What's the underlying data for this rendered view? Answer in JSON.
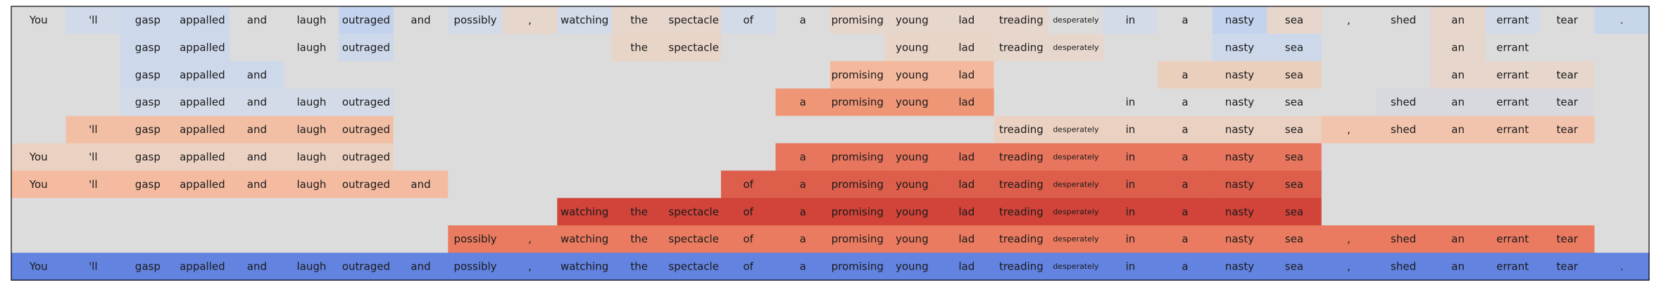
{
  "chart_data": {
    "type": "heatmap",
    "title": "",
    "tokens": [
      "You",
      "'ll",
      "gasp",
      "appalled",
      "and",
      "laugh",
      "outraged",
      "and",
      "possibly",
      ",",
      "watching",
      "the",
      "spectacle",
      "of",
      "a",
      "promising",
      "young",
      "lad",
      "treading",
      "desperately",
      "in",
      "a",
      "nasty",
      "sea",
      ",",
      "shed",
      "an",
      "errant",
      "tear",
      "."
    ],
    "rows": [
      {
        "shown": [
          1,
          1,
          1,
          1,
          1,
          1,
          1,
          1,
          1,
          1,
          1,
          1,
          1,
          1,
          1,
          1,
          1,
          1,
          1,
          1,
          1,
          1,
          1,
          1,
          1,
          1,
          1,
          1,
          1,
          1
        ],
        "colors": [
          "#dcdcdc",
          "#d0dae9",
          "#cdd8ea",
          "#cdd8ea",
          "#dcdcdc",
          "#dcdcdc",
          "#c3d3ee",
          "#dcdcdc",
          "#d3dbe8",
          "#e6d6cc",
          "#d3dbe8",
          "#e6d6cc",
          "#e6d6cc",
          "#d3dbe8",
          "#dcdcdc",
          "#e6d6cc",
          "#e6d6cc",
          "#e6d6cc",
          "#e6d6cc",
          "#dcdcdc",
          "#d3dbe8",
          "#dcdcdc",
          "#c3d3ee",
          "#e6d6cc",
          "#dcdcdc",
          "#dcdcdc",
          "#e6d6cc",
          "#d3dbe8",
          "#dcdcdc",
          "#c8d6ec"
        ]
      },
      {
        "shown": [
          0,
          0,
          1,
          1,
          0,
          1,
          1,
          0,
          0,
          0,
          0,
          1,
          1,
          0,
          0,
          0,
          1,
          1,
          1,
          1,
          0,
          0,
          1,
          1,
          0,
          0,
          1,
          1,
          0,
          0
        ],
        "colors": [
          "#dcdcdc",
          "#dcdcdc",
          "#cdd8ea",
          "#cdd8ea",
          "#dcdcdc",
          "#dcdcdc",
          "#cdd8ea",
          "#dcdcdc",
          "#dcdcdc",
          "#dcdcdc",
          "#dcdcdc",
          "#e8d5c8",
          "#e8d5c8",
          "#dcdcdc",
          "#dcdcdc",
          "#dcdcdc",
          "#e8d5c8",
          "#e8d5c8",
          "#e6d6cc",
          "#e6d6cc",
          "#dcdcdc",
          "#dcdcdc",
          "#cdd8ea",
          "#cdd8ea",
          "#dcdcdc",
          "#dcdcdc",
          "#e6d6cc",
          "#dcdcdc",
          "#dcdcdc",
          "#dcdcdc"
        ]
      },
      {
        "shown": [
          0,
          0,
          1,
          1,
          1,
          0,
          0,
          0,
          0,
          0,
          0,
          0,
          0,
          0,
          0,
          1,
          1,
          1,
          0,
          0,
          0,
          1,
          1,
          1,
          0,
          0,
          1,
          1,
          1,
          0
        ],
        "colors": [
          "#dcdcdc",
          "#dcdcdc",
          "#cdd8ea",
          "#cdd8ea",
          "#cdd8ea",
          "#dcdcdc",
          "#dcdcdc",
          "#dcdcdc",
          "#dcdcdc",
          "#dcdcdc",
          "#dcdcdc",
          "#dcdcdc",
          "#dcdcdc",
          "#dcdcdc",
          "#dcdcdc",
          "#f4b89c",
          "#f4b89c",
          "#f4b89c",
          "#dcdcdc",
          "#dcdcdc",
          "#dcdcdc",
          "#ebcfbd",
          "#ebcfbd",
          "#ebcfbd",
          "#dcdcdc",
          "#dcdcdc",
          "#e6d6cc",
          "#e6d6cc",
          "#e6d6cc",
          "#dcdcdc"
        ]
      },
      {
        "shown": [
          0,
          0,
          1,
          1,
          1,
          1,
          1,
          0,
          0,
          0,
          0,
          0,
          0,
          0,
          1,
          1,
          1,
          1,
          0,
          0,
          1,
          1,
          1,
          1,
          0,
          1,
          1,
          1,
          1,
          0
        ],
        "colors": [
          "#dcdcdc",
          "#dcdcdc",
          "#d3dbe8",
          "#d3dbe8",
          "#d3dbe8",
          "#d3dbe8",
          "#d3dbe8",
          "#dcdcdc",
          "#dcdcdc",
          "#dcdcdc",
          "#dcdcdc",
          "#dcdcdc",
          "#dcdcdc",
          "#dcdcdc",
          "#ef9677",
          "#ef9677",
          "#ef9677",
          "#ef9677",
          "#dcdcdc",
          "#dcdcdc",
          "#dcdcdc",
          "#dcdcdc",
          "#dcdcdc",
          "#dcdcdc",
          "#dcdcdc",
          "#d8d9df",
          "#d8d9df",
          "#d8d9df",
          "#d8d9df",
          "#dcdcdc"
        ]
      },
      {
        "shown": [
          0,
          1,
          1,
          1,
          1,
          1,
          1,
          0,
          0,
          0,
          0,
          0,
          0,
          0,
          0,
          0,
          0,
          0,
          1,
          1,
          1,
          1,
          1,
          1,
          1,
          1,
          1,
          1,
          1,
          0
        ],
        "colors": [
          "#dcdcdc",
          "#f2bfa5",
          "#f2bfa5",
          "#f2bfa5",
          "#f2bfa5",
          "#f2bfa5",
          "#f2bfa5",
          "#dcdcdc",
          "#dcdcdc",
          "#dcdcdc",
          "#dcdcdc",
          "#dcdcdc",
          "#dcdcdc",
          "#dcdcdc",
          "#dcdcdc",
          "#dcdcdc",
          "#dcdcdc",
          "#dcdcdc",
          "#ebd1c2",
          "#ebd1c2",
          "#ebd1c2",
          "#ebd1c2",
          "#ebd1c2",
          "#ebd1c2",
          "#f3c4ad",
          "#f3c4ad",
          "#f3c4ad",
          "#f3c4ad",
          "#f3c4ad",
          "#dcdcdc"
        ]
      },
      {
        "shown": [
          1,
          1,
          1,
          1,
          1,
          1,
          1,
          0,
          0,
          0,
          0,
          0,
          0,
          0,
          1,
          1,
          1,
          1,
          1,
          1,
          1,
          1,
          1,
          1,
          0,
          0,
          0,
          0,
          0,
          0
        ],
        "colors": [
          "#ebd1c2",
          "#ebd1c2",
          "#ebd1c2",
          "#ebd1c2",
          "#ebd1c2",
          "#ebd1c2",
          "#ebd1c2",
          "#dcdcdc",
          "#dcdcdc",
          "#dcdcdc",
          "#dcdcdc",
          "#dcdcdc",
          "#dcdcdc",
          "#dcdcdc",
          "#e8755d",
          "#e8755d",
          "#e8755d",
          "#e8755d",
          "#e8755d",
          "#e8755d",
          "#e8755d",
          "#e8755d",
          "#e8755d",
          "#e8755d",
          "#dcdcdc",
          "#dcdcdc",
          "#dcdcdc",
          "#dcdcdc",
          "#dcdcdc",
          "#dcdcdc"
        ]
      },
      {
        "shown": [
          1,
          1,
          1,
          1,
          1,
          1,
          1,
          1,
          0,
          0,
          0,
          0,
          0,
          1,
          1,
          1,
          1,
          1,
          1,
          1,
          1,
          1,
          1,
          1,
          0,
          0,
          0,
          0,
          0,
          0
        ],
        "colors": [
          "#f4bba0",
          "#f4bba0",
          "#f4bba0",
          "#f4bba0",
          "#f4bba0",
          "#f4bba0",
          "#f4bba0",
          "#f4bba0",
          "#dcdcdc",
          "#dcdcdc",
          "#dcdcdc",
          "#dcdcdc",
          "#dcdcdc",
          "#dd5e4b",
          "#dd5e4b",
          "#dd5e4b",
          "#dd5e4b",
          "#dd5e4b",
          "#dd5e4b",
          "#dd5e4b",
          "#dd5e4b",
          "#dd5e4b",
          "#dd5e4b",
          "#dd5e4b",
          "#dcdcdc",
          "#dcdcdc",
          "#dcdcdc",
          "#dcdcdc",
          "#dcdcdc",
          "#dcdcdc"
        ]
      },
      {
        "shown": [
          0,
          0,
          0,
          0,
          0,
          0,
          0,
          0,
          0,
          0,
          1,
          1,
          1,
          1,
          1,
          1,
          1,
          1,
          1,
          1,
          1,
          1,
          1,
          1,
          0,
          0,
          0,
          0,
          0,
          0
        ],
        "colors": [
          "#dcdcdc",
          "#dcdcdc",
          "#dcdcdc",
          "#dcdcdc",
          "#dcdcdc",
          "#dcdcdc",
          "#dcdcdc",
          "#dcdcdc",
          "#dcdcdc",
          "#dcdcdc",
          "#d2443a",
          "#d2443a",
          "#d2443a",
          "#d2443a",
          "#d2443a",
          "#d2443a",
          "#d2443a",
          "#d2443a",
          "#d2443a",
          "#d2443a",
          "#d2443a",
          "#d2443a",
          "#d2443a",
          "#d2443a",
          "#dcdcdc",
          "#dcdcdc",
          "#dcdcdc",
          "#dcdcdc",
          "#dcdcdc",
          "#dcdcdc"
        ]
      },
      {
        "shown": [
          0,
          0,
          0,
          0,
          0,
          0,
          0,
          0,
          1,
          1,
          1,
          1,
          1,
          1,
          1,
          1,
          1,
          1,
          1,
          1,
          1,
          1,
          1,
          1,
          1,
          1,
          1,
          1,
          1,
          0
        ],
        "colors": [
          "#dcdcdc",
          "#dcdcdc",
          "#dcdcdc",
          "#dcdcdc",
          "#dcdcdc",
          "#dcdcdc",
          "#dcdcdc",
          "#dcdcdc",
          "#ea7b60",
          "#ea7b60",
          "#ea7b60",
          "#ea7b60",
          "#ea7b60",
          "#ea7b60",
          "#ea7b60",
          "#ea7b60",
          "#ea7b60",
          "#ea7b60",
          "#ea7b60",
          "#ea7b60",
          "#ea7b60",
          "#ea7b60",
          "#ea7b60",
          "#ea7b60",
          "#ea7b60",
          "#ea7b60",
          "#ea7b60",
          "#ea7b60",
          "#ea7b60",
          "#dcdcdc"
        ]
      },
      {
        "shown": [
          1,
          1,
          1,
          1,
          1,
          1,
          1,
          1,
          1,
          1,
          1,
          1,
          1,
          1,
          1,
          1,
          1,
          1,
          1,
          1,
          1,
          1,
          1,
          1,
          1,
          1,
          1,
          1,
          1,
          1
        ],
        "colors": [
          "#6383e0",
          "#6383e0",
          "#6383e0",
          "#6383e0",
          "#6383e0",
          "#6383e0",
          "#6383e0",
          "#6383e0",
          "#6383e0",
          "#6383e0",
          "#6383e0",
          "#6383e0",
          "#6383e0",
          "#6383e0",
          "#6383e0",
          "#6383e0",
          "#6383e0",
          "#6383e0",
          "#6383e0",
          "#6383e0",
          "#6383e0",
          "#6383e0",
          "#6383e0",
          "#6383e0",
          "#6383e0",
          "#6383e0",
          "#6383e0",
          "#6383e0",
          "#6383e0",
          "#6383e0"
        ]
      }
    ],
    "small_text_tokens": [
      "desperately"
    ],
    "background_color": "#dcdcdc",
    "border_color": "#000000"
  }
}
